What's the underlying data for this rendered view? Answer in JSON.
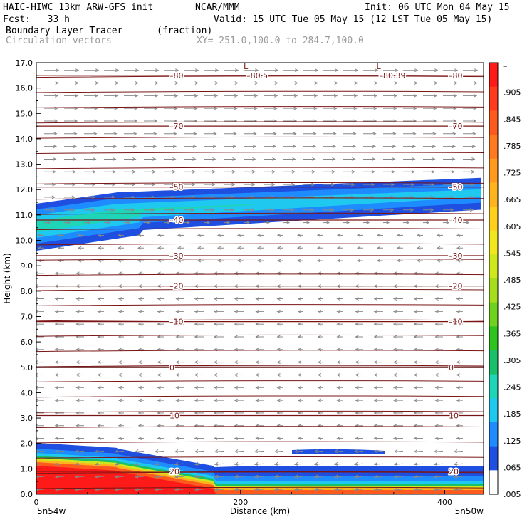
{
  "header": {
    "model": "HAIC-HIWC 13km ARW-GFS init",
    "org": "NCAR/MMM",
    "init": "Init: 06 UTC Mon 04 May 15",
    "fcst": "Fcst:   33 h",
    "valid": "Valid: 15 UTC Tue 05 May 15 (12 LST Tue 05 May 15)",
    "field": "Boundary Layer Tracer",
    "field_units": "(fraction)",
    "vectors": "Circulation vectors",
    "xy": "XY= 251.0,100.0 to 284.7,100.0"
  },
  "chart_data": {
    "type": "heatmap",
    "title": "Boundary Layer Tracer",
    "units": "(fraction)",
    "xlabel": "Distance (km)",
    "ylabel": "Height (km)",
    "x_ticks": [
      "0",
      "200",
      "400"
    ],
    "x_end_labels": [
      "5n54w",
      "5n50w"
    ],
    "xlim": [
      0,
      438
    ],
    "ylim": [
      0,
      17
    ],
    "y_ticks": [
      "0.0",
      "1.0",
      "2.0",
      "3.0",
      "4.0",
      "5.0",
      "6.0",
      "7.0",
      "8.0",
      "9.0",
      "10.0",
      "11.0",
      "12.0",
      "13.0",
      "14.0",
      "15.0",
      "16.0",
      "17.0"
    ],
    "colorbar": {
      "labels": [
        "–",
        ".905",
        ".845",
        ".785",
        ".725",
        ".665",
        ".605",
        ".545",
        ".485",
        ".425",
        ".365",
        ".305",
        ".245",
        ".185",
        ".125",
        ".065",
        ".005"
      ],
      "colors": [
        "#ff1a1a",
        "#ff3b1e",
        "#ff5a1e",
        "#ff7a1e",
        "#ff9a1e",
        "#ffb41e",
        "#ffcf1e",
        "#f2e61e",
        "#cfe81e",
        "#a6de1e",
        "#6fd21e",
        "#2fc31e",
        "#1abf6a",
        "#1ed5b8",
        "#1ec8ef",
        "#1e8cff",
        "#1f4fe0",
        "#ffffff"
      ]
    },
    "temperature_contours": [
      {
        "label": "–80",
        "height_km": 16.5
      },
      {
        "label": "–70",
        "height_km": 14.5
      },
      {
        "label": "–50",
        "height_km": 12.1
      },
      {
        "label": "–40",
        "height_km": 10.8
      },
      {
        "label": "–30",
        "height_km": 9.4
      },
      {
        "label": "–20",
        "height_km": 8.2
      },
      {
        "label": "–10",
        "height_km": 6.8
      },
      {
        "label": "0",
        "height_km": 5.0
      },
      {
        "label": "10",
        "height_km": 3.1
      },
      {
        "label": "20",
        "height_km": 0.9
      }
    ],
    "low_markers": [
      {
        "label": "L",
        "value": "–80.5",
        "x_km": 210
      },
      {
        "label": "L",
        "value": "–80.39",
        "x_km": 340
      }
    ],
    "features": {
      "boundary_layer_top_km": 1.9,
      "upper_tracer_layer_km": [
        10.5,
        12.4
      ]
    }
  }
}
